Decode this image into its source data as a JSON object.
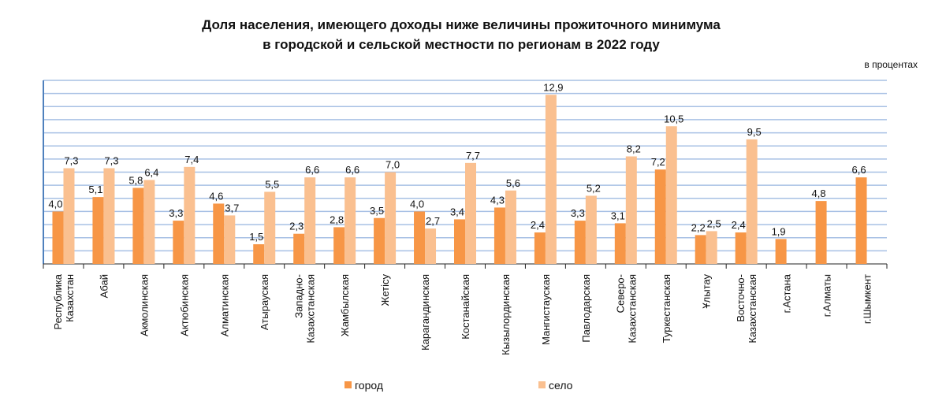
{
  "chart_data": {
    "type": "bar",
    "title": [
      "Доля населения, имеющего доходы ниже величины прожиточного минимума",
      "в городской и сельской местности по регионам в 2022 году"
    ],
    "unit_label": "в процентах",
    "categories": [
      "Республика\nКазахстан",
      "Абай",
      "Акмолинская",
      "Актюбинская",
      "Алматинская",
      "Атырауская",
      "Западно-\nКазахстанская",
      "Жамбылская",
      "Жетісу",
      "Карагандинская",
      "Костанайская",
      "Кызылординская",
      "Мангистауская",
      "Павлодарская",
      "Северо-\nКазахстанская",
      "Туркестанская",
      "Ұлытау",
      "Восточно-\nКазахстанская",
      "г.Астана",
      "г.Алматы",
      "г.Шымкент"
    ],
    "series": [
      {
        "name": "город",
        "color": "#f79646",
        "values": [
          4.0,
          5.1,
          5.8,
          3.3,
          4.6,
          1.5,
          2.3,
          2.8,
          3.5,
          4.0,
          3.4,
          4.3,
          2.4,
          3.3,
          3.1,
          7.2,
          2.2,
          2.4,
          1.9,
          4.8,
          6.6
        ]
      },
      {
        "name": "село",
        "color": "#fac090",
        "values": [
          7.3,
          7.3,
          6.4,
          7.4,
          3.7,
          5.5,
          6.6,
          6.6,
          7.0,
          2.7,
          7.7,
          5.6,
          12.9,
          5.2,
          8.2,
          10.5,
          2.5,
          9.5,
          null,
          null,
          null
        ]
      }
    ],
    "ylim": [
      0,
      14
    ],
    "grid": true,
    "legend": "bottom",
    "decimal_separator": ","
  }
}
